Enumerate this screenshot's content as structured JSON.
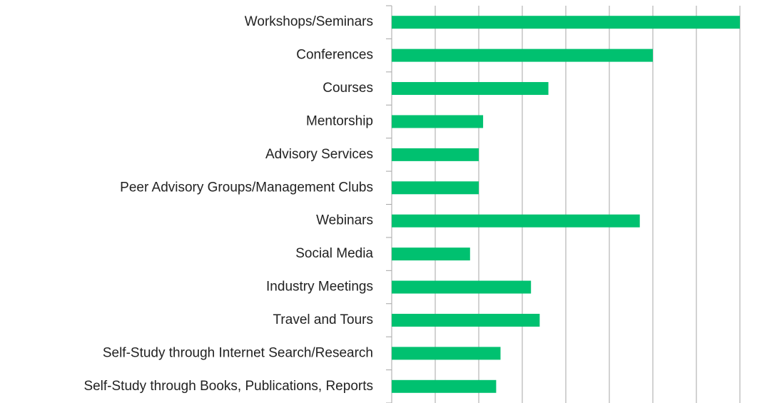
{
  "chart_data": {
    "type": "bar",
    "orientation": "horizontal",
    "categories": [
      "Workshops/Seminars",
      "Conferences",
      "Courses",
      "Mentorship",
      "Advisory Services",
      "Peer Advisory Groups/Management Clubs",
      "Webinars",
      "Social Media",
      "Industry Meetings",
      "Travel and Tours",
      "Self-Study through Internet Search/Research",
      "Self-Study through Books, Publications, Reports"
    ],
    "values": [
      8.0,
      6.0,
      3.6,
      2.1,
      2.0,
      2.0,
      5.7,
      1.8,
      3.2,
      3.4,
      2.5,
      2.4
    ],
    "color": "#00c170",
    "xlim": [
      0,
      8
    ],
    "xticks": [
      0,
      1,
      2,
      3,
      4,
      5,
      6,
      7,
      8
    ],
    "grid": true
  }
}
